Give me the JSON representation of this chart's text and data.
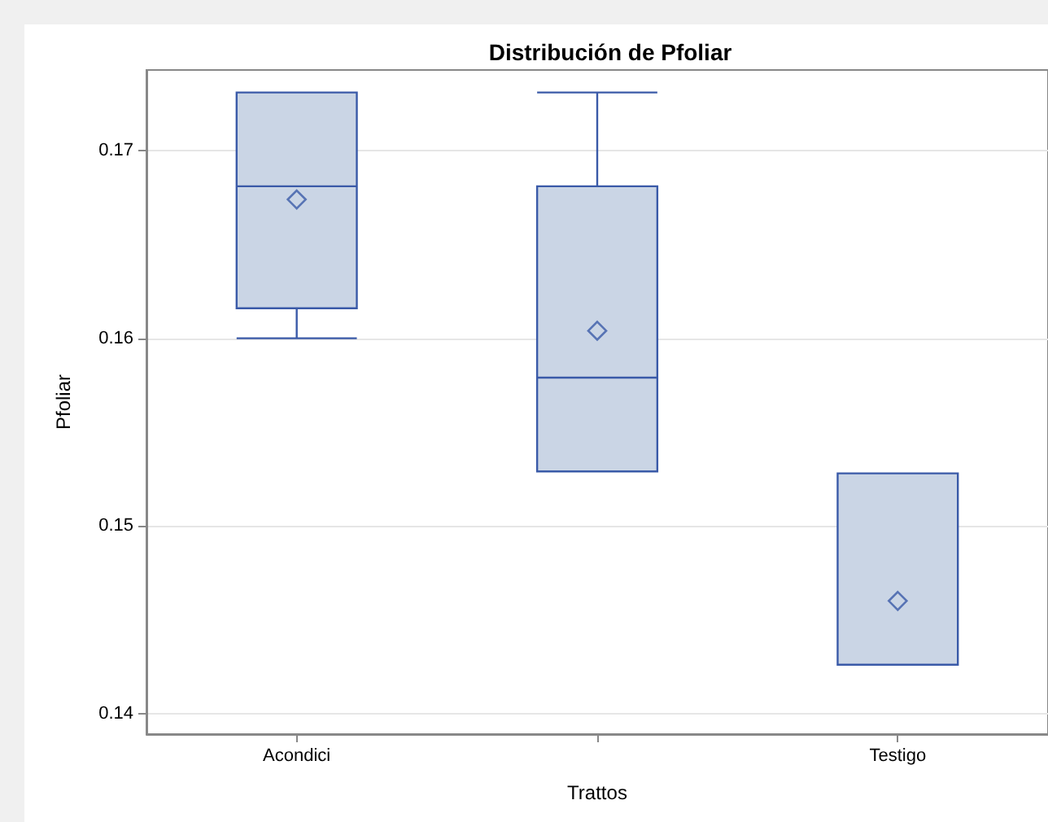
{
  "chart_data": {
    "type": "box",
    "title": "Distribución de Pfoliar",
    "xlabel": "Trattos",
    "ylabel": "Pfoliar",
    "categories": [
      "Acondici",
      null,
      "Testigo"
    ],
    "boxes": [
      {
        "low": 0.16,
        "q1": 0.1616,
        "median": 0.1681,
        "q3": 0.1731,
        "high": 0.1731,
        "mean": 0.1674
      },
      {
        "low": 0.1529,
        "q1": 0.1529,
        "median": 0.1579,
        "q3": 0.1681,
        "high": 0.1731,
        "mean": 0.1604
      },
      {
        "low": 0.1426,
        "q1": 0.1426,
        "median": 0.1426,
        "q3": 0.1528,
        "high": 0.1528,
        "mean": 0.146
      }
    ],
    "color": "#cad5e5",
    "ylim": [
      0.1389,
      0.1743
    ],
    "yticks": [
      0.14,
      0.15,
      0.16,
      0.17
    ],
    "grid": "y",
    "marker": "diamond"
  }
}
